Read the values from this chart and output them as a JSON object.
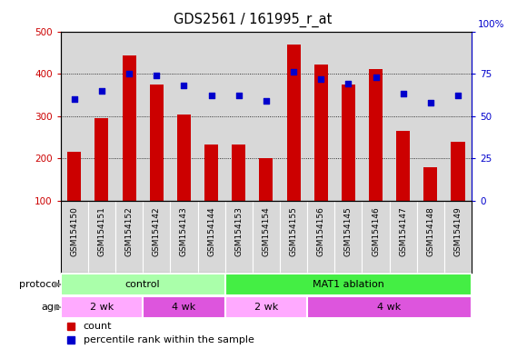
{
  "title": "GDS2561 / 161995_r_at",
  "samples": [
    "GSM154150",
    "GSM154151",
    "GSM154152",
    "GSM154142",
    "GSM154143",
    "GSM154144",
    "GSM154153",
    "GSM154154",
    "GSM154155",
    "GSM154156",
    "GSM154145",
    "GSM154146",
    "GSM154147",
    "GSM154148",
    "GSM154149"
  ],
  "counts": [
    215,
    295,
    443,
    375,
    303,
    233,
    233,
    200,
    468,
    422,
    375,
    412,
    265,
    178,
    240
  ],
  "percentiles": [
    60,
    65,
    75,
    74,
    68,
    62,
    62,
    59,
    76,
    72,
    69,
    73,
    63,
    58,
    62
  ],
  "ylim_left": [
    100,
    500
  ],
  "ylim_right": [
    0,
    100
  ],
  "yticks_left": [
    100,
    200,
    300,
    400,
    500
  ],
  "yticks_right": [
    0,
    25,
    50,
    75,
    100
  ],
  "bar_color": "#cc0000",
  "dot_color": "#0000cc",
  "background_color": "#d8d8d8",
  "protocol_labels": [
    {
      "label": "control",
      "start": 0,
      "end": 6,
      "color": "#aaffaa"
    },
    {
      "label": "MAT1 ablation",
      "start": 6,
      "end": 15,
      "color": "#44ee44"
    }
  ],
  "age_labels": [
    {
      "label": "2 wk",
      "start": 0,
      "end": 3,
      "color": "#ffaaff"
    },
    {
      "label": "4 wk",
      "start": 3,
      "end": 6,
      "color": "#dd55dd"
    },
    {
      "label": "2 wk",
      "start": 6,
      "end": 9,
      "color": "#ffaaff"
    },
    {
      "label": "4 wk",
      "start": 9,
      "end": 15,
      "color": "#dd55dd"
    }
  ],
  "legend_count_color": "#cc0000",
  "legend_dot_color": "#0000cc"
}
